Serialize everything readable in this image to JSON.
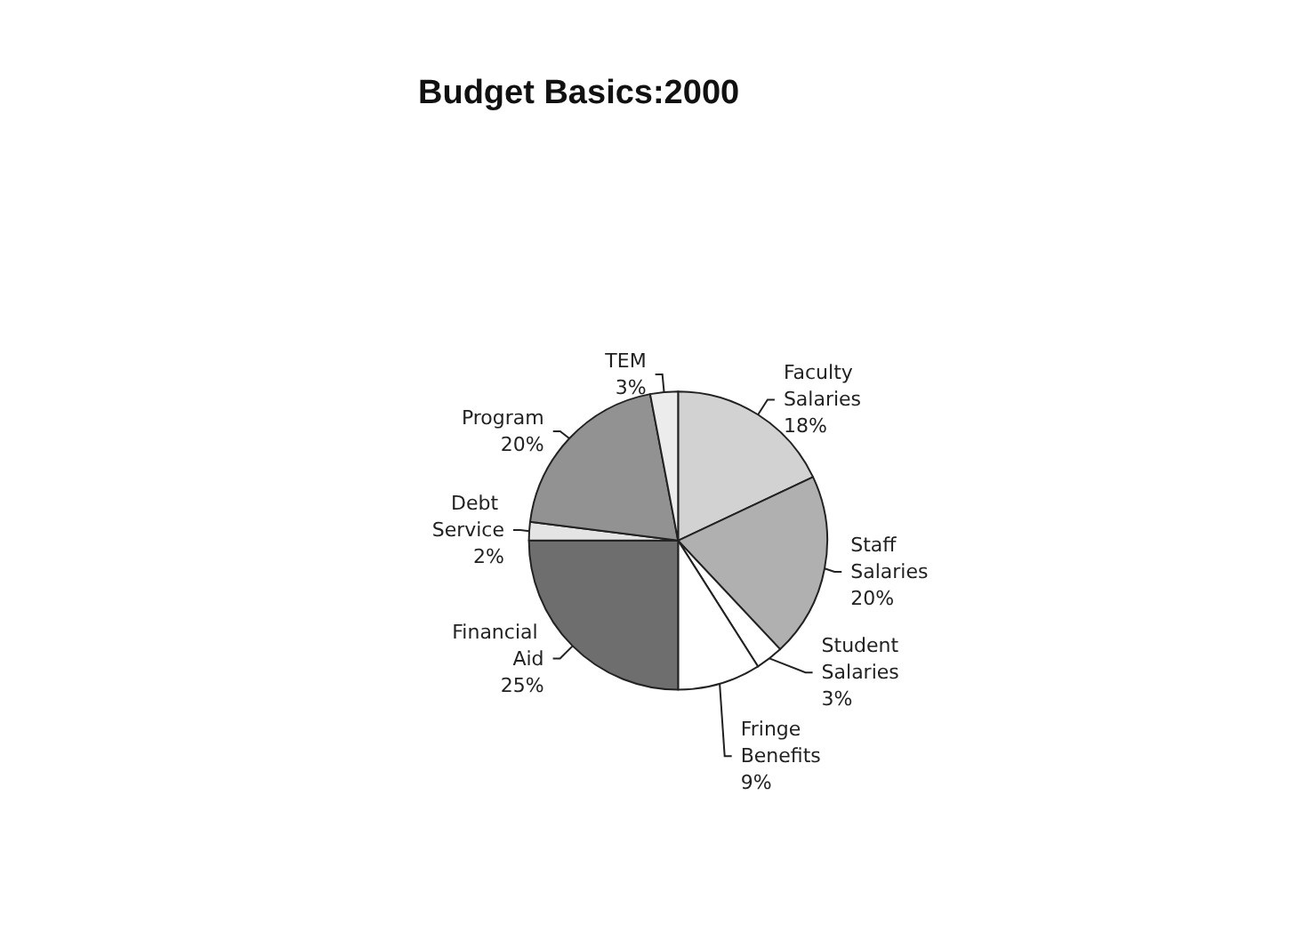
{
  "chart_data": {
    "type": "pie",
    "title": "Budget Basics:2000",
    "categories": [
      "Faculty Salaries",
      "Staff Salaries",
      "Student Salaries",
      "Fringe Benefits",
      "Financial Aid",
      "Debt Service",
      "Program",
      "TEM"
    ],
    "values": [
      18,
      20,
      3,
      9,
      25,
      2,
      20,
      3
    ],
    "colors": [
      "#d2d2d2",
      "#b0b0b0",
      "#ffffff",
      "#ffffff",
      "#6e6e6e",
      "#e4e4e4",
      "#929292",
      "#ececec"
    ],
    "value_labels": [
      "18%",
      "20%",
      "3%",
      "9%",
      "25%",
      "2%",
      "20%",
      "3%"
    ]
  }
}
